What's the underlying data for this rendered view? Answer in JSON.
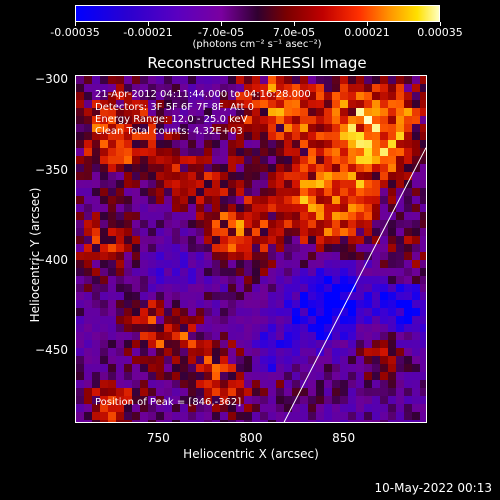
{
  "colorbar": {
    "tick_labels": [
      "-0.00035",
      "-0.00021",
      "-7.0e-05",
      "7.0e-05",
      "0.00021",
      "0.00035"
    ],
    "units_label": "(photons cm⁻² s⁻¹ asec⁻²)"
  },
  "plot": {
    "title": "Reconstructed RHESSI Image",
    "xlabel": "Heliocentric X (arcsec)",
    "ylabel": "Heliocentric Y (arcsec)",
    "x_ticks": [
      "750",
      "800",
      "850"
    ],
    "y_ticks": [
      "-300",
      "-350",
      "-400",
      "-450"
    ],
    "annotations": {
      "time": "21-Apr-2012 04:11:44.000 to 04:16:28.000",
      "detectors": "Detectors: 3F 5F 6F 7F 8F, Att 0",
      "energy": "Energy Range: 12.0 - 25.0 keV",
      "clean": "Clean     Total counts: 4.32E+03",
      "peak": "Position of Peak = [846,-362]"
    }
  },
  "footer": {
    "timestamp": "10-May-2022 00:13"
  },
  "chart_data": {
    "type": "heatmap",
    "title": "Reconstructed RHESSI Image",
    "xlabel": "Heliocentric X (arcsec)",
    "ylabel": "Heliocentric Y (arcsec)",
    "xlim": [
      705,
      895
    ],
    "ylim": [
      -490,
      -297
    ],
    "color_range": [
      -0.00035,
      0.00035
    ],
    "peak_position": [
      846,
      -362
    ],
    "limb_line": [
      [
        818,
        -490
      ],
      [
        895,
        -337
      ]
    ],
    "colors": {
      "low": "#0000ff",
      "mid": "#300030",
      "high": "#ffffc0"
    }
  }
}
